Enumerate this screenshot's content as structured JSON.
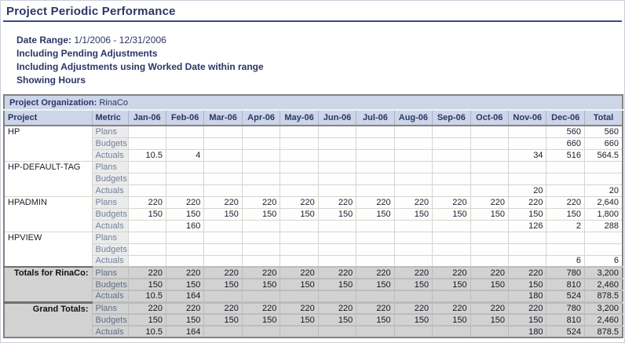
{
  "page": {
    "title": "Project Periodic Performance"
  },
  "meta": {
    "date_range_label": "Date Range:",
    "date_range_value": "1/1/2006 - 12/31/2006",
    "line_pending": "Including Pending Adjustments",
    "line_adjustments": "Including Adjustments using Worked Date within range",
    "line_showing": "Showing Hours"
  },
  "colors": {
    "title_navy": "#2d3566",
    "header_bg": "#ccd6e8",
    "metric_bg": "#ebebeb",
    "totals_bg": "#d2d2d2",
    "grid_line": "#d6d6ce"
  },
  "table": {
    "org_label": "Project Organization:",
    "org_value": "RinaCo",
    "project_header": "Project",
    "metric_header": "Metric",
    "month_headers": [
      "Jan-06",
      "Feb-06",
      "Mar-06",
      "Apr-06",
      "May-06",
      "Jun-06",
      "Jul-06",
      "Aug-06",
      "Sep-06",
      "Oct-06",
      "Nov-06",
      "Dec-06",
      "Total"
    ],
    "groups": [
      {
        "project": "HP",
        "rows": [
          {
            "metric": "Plans",
            "values": [
              "",
              "",
              "",
              "",
              "",
              "",
              "",
              "",
              "",
              "",
              "",
              "560",
              "560"
            ]
          },
          {
            "metric": "Budgets",
            "values": [
              "",
              "",
              "",
              "",
              "",
              "",
              "",
              "",
              "",
              "",
              "",
              "660",
              "660"
            ]
          },
          {
            "metric": "Actuals",
            "values": [
              "10.5",
              "4",
              "",
              "",
              "",
              "",
              "",
              "",
              "",
              "",
              "34",
              "516",
              "564.5"
            ]
          }
        ]
      },
      {
        "project": "HP-DEFAULT-TAG",
        "rows": [
          {
            "metric": "Plans",
            "values": [
              "",
              "",
              "",
              "",
              "",
              "",
              "",
              "",
              "",
              "",
              "",
              "",
              ""
            ]
          },
          {
            "metric": "Budgets",
            "values": [
              "",
              "",
              "",
              "",
              "",
              "",
              "",
              "",
              "",
              "",
              "",
              "",
              ""
            ]
          },
          {
            "metric": "Actuals",
            "values": [
              "",
              "",
              "",
              "",
              "",
              "",
              "",
              "",
              "",
              "",
              "20",
              "",
              "20"
            ]
          }
        ]
      },
      {
        "project": "HPADMIN",
        "rows": [
          {
            "metric": "Plans",
            "values": [
              "220",
              "220",
              "220",
              "220",
              "220",
              "220",
              "220",
              "220",
              "220",
              "220",
              "220",
              "220",
              "2,640"
            ]
          },
          {
            "metric": "Budgets",
            "values": [
              "150",
              "150",
              "150",
              "150",
              "150",
              "150",
              "150",
              "150",
              "150",
              "150",
              "150",
              "150",
              "1,800"
            ]
          },
          {
            "metric": "Actuals",
            "values": [
              "",
              "160",
              "",
              "",
              "",
              "",
              "",
              "",
              "",
              "",
              "126",
              "2",
              "288"
            ]
          }
        ]
      },
      {
        "project": "HPVIEW",
        "rows": [
          {
            "metric": "Plans",
            "values": [
              "",
              "",
              "",
              "",
              "",
              "",
              "",
              "",
              "",
              "",
              "",
              "",
              ""
            ]
          },
          {
            "metric": "Budgets",
            "values": [
              "",
              "",
              "",
              "",
              "",
              "",
              "",
              "",
              "",
              "",
              "",
              "",
              ""
            ]
          },
          {
            "metric": "Actuals",
            "values": [
              "",
              "",
              "",
              "",
              "",
              "",
              "",
              "",
              "",
              "",
              "",
              "6",
              "6"
            ]
          }
        ]
      }
    ],
    "total_sections": [
      {
        "label": "Totals for RinaCo:",
        "rows": [
          {
            "metric": "Plans",
            "values": [
              "220",
              "220",
              "220",
              "220",
              "220",
              "220",
              "220",
              "220",
              "220",
              "220",
              "220",
              "780",
              "3,200"
            ]
          },
          {
            "metric": "Budgets",
            "values": [
              "150",
              "150",
              "150",
              "150",
              "150",
              "150",
              "150",
              "150",
              "150",
              "150",
              "150",
              "810",
              "2,460"
            ]
          },
          {
            "metric": "Actuals",
            "values": [
              "10.5",
              "164",
              "",
              "",
              "",
              "",
              "",
              "",
              "",
              "",
              "180",
              "524",
              "878.5"
            ]
          }
        ]
      },
      {
        "label": "Grand Totals:",
        "rows": [
          {
            "metric": "Plans",
            "values": [
              "220",
              "220",
              "220",
              "220",
              "220",
              "220",
              "220",
              "220",
              "220",
              "220",
              "220",
              "780",
              "3,200"
            ]
          },
          {
            "metric": "Budgets",
            "values": [
              "150",
              "150",
              "150",
              "150",
              "150",
              "150",
              "150",
              "150",
              "150",
              "150",
              "150",
              "810",
              "2,460"
            ]
          },
          {
            "metric": "Actuals",
            "values": [
              "10.5",
              "164",
              "",
              "",
              "",
              "",
              "",
              "",
              "",
              "",
              "180",
              "524",
              "878.5"
            ]
          }
        ]
      }
    ]
  }
}
